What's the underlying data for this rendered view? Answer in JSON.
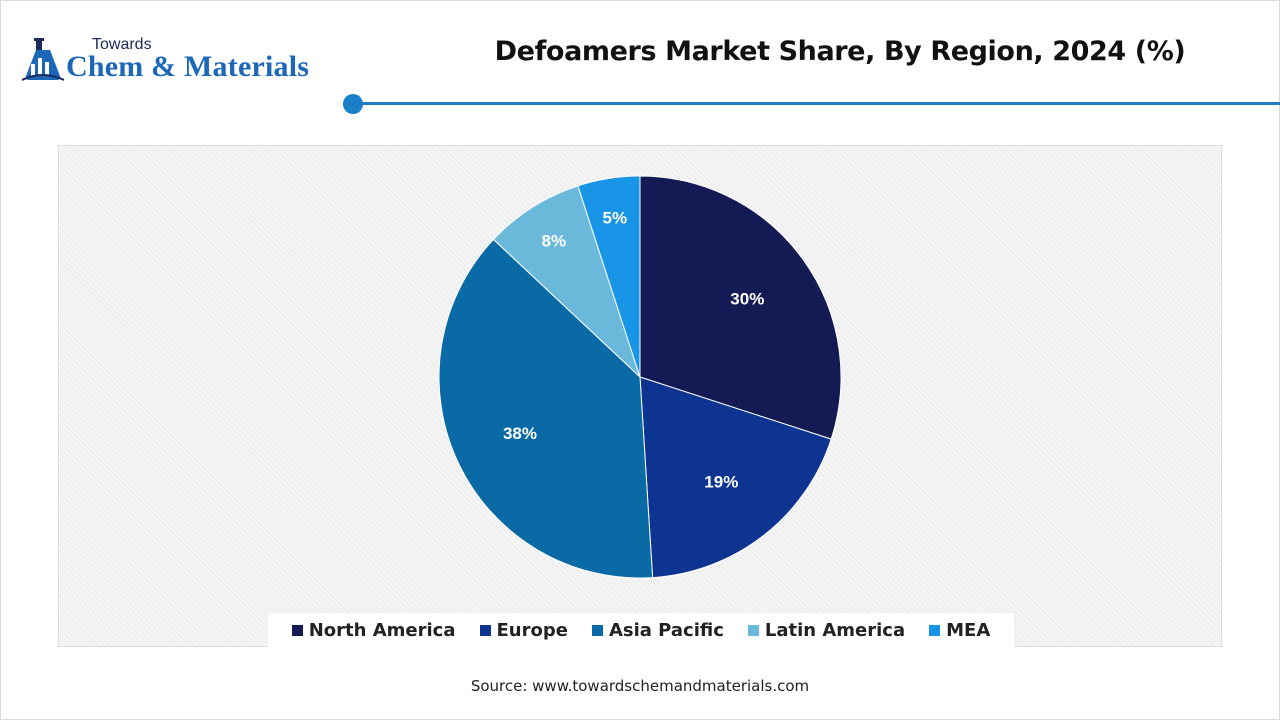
{
  "logo": {
    "line1": "Towards",
    "line2": "Chem & Materials",
    "icon": "flask-building-icon"
  },
  "title": "Defoamers Market Share, By Region, 2024 (%)",
  "source": "Source: www.towardschemandmaterials.com",
  "colors": {
    "accent": "#1a7fc8",
    "North America": "#131a54",
    "Europe": "#0d3490",
    "Asia Pacific": "#0a6aa6",
    "Latin America": "#6ab9db",
    "MEA": "#1995e8"
  },
  "chart_data": {
    "type": "pie",
    "title": "Defoamers Market Share, By Region, 2024 (%)",
    "categories": [
      "North America",
      "Europe",
      "Asia Pacific",
      "Latin America",
      "MEA"
    ],
    "values": [
      30,
      19,
      38,
      8,
      5
    ],
    "labels": [
      "30%",
      "19%",
      "38%",
      "8%",
      "5%"
    ],
    "colors": [
      "#131a54",
      "#0d3490",
      "#0a6aa6",
      "#6ab9db",
      "#1995e8"
    ],
    "legend": "bottom"
  }
}
